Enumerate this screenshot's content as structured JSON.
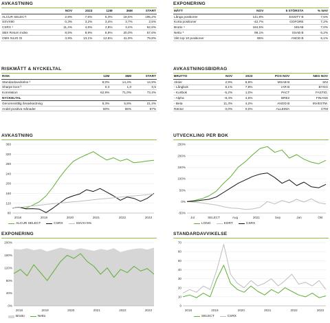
{
  "colors": {
    "green": "#5fae32",
    "black": "#111111",
    "gray": "#bdbdbd",
    "light_gray": "#d6d6d6",
    "accent_line": "#8ac13f"
  },
  "avkastning_table": {
    "title": "AVKASTNING",
    "headers": [
      "",
      "NOV",
      "2023",
      "12M",
      "36M",
      "START"
    ],
    "rows": [
      [
        "ALCUR SELECT",
        "2,8%",
        "7,6%",
        "5,3%",
        "18,5%",
        "195,2%"
      ],
      [
        "SSVX90",
        "0,3%",
        "3,2%",
        "3,4%",
        "3,7%",
        "2,5%"
      ],
      [
        "CSRX ¹",
        "11,4%",
        "4,6%",
        "2,8%",
        "3,4%",
        "62,6%"
      ],
      [
        "SBX Return Index",
        "8,5%",
        "9,9%",
        "6,9%",
        "20,0%",
        "57,6%"
      ],
      [
        "OMX N120 GI",
        "3,9%",
        "13,1%",
        "12,6%",
        "41,9%",
        "79,8%"
      ]
    ]
  },
  "exponering_table": {
    "title": "EXPONERING",
    "headers": [
      "MÅTT",
      "NOV",
      "5 STÖRSTA",
      "% NAV"
    ],
    "rows": [
      [
        "Långa positioner",
        "141,8%",
        "ESSITY B",
        "7,5%"
      ],
      [
        "Korta positioner",
        "-42,7%",
        "GOFORE",
        "7,2%"
      ],
      [
        "Brutto ⁴",
        "184,5%",
        "MSAB",
        "7,0%"
      ],
      [
        "Netto ⁵",
        "99,1%",
        "SSAB B",
        "6,2%"
      ],
      [
        "Vikt top 10 positioner",
        "85%",
        "ANOD B",
        "6,1%"
      ]
    ]
  },
  "risk_table": {
    "title": "RISKMÅTT & NYCKELTAL",
    "headers": [
      "RISK",
      "12M",
      "36M",
      "START"
    ],
    "rows": [
      [
        "Standardavvikelse ²",
        "8,0%",
        "14,4%",
        "14,9%"
      ],
      [
        "Sharpe kvot ³",
        "0,3",
        "1,0",
        "0,5"
      ],
      [
        "Korrelation",
        "62,9%",
        "71,0%",
        "73,4%"
      ]
    ],
    "sub_header": "NYCKELTAL",
    "rows2": [
      [
        "Genomsnittlig årsavkastning",
        "5,3%",
        "5,8%",
        "21,4%"
      ],
      [
        "Andel positiva månader",
        "50%",
        "55%",
        "67%"
      ]
    ]
  },
  "bidrag_table": {
    "title": "AVKASTNINGSBIDRAG",
    "headers": [
      "BRUTTO",
      "NOV",
      "2023",
      "POS NOV",
      "NEG NOV"
    ],
    "rows": [
      [
        "Aktier",
        "2,9%",
        "8,8%",
        "MSAB B",
        "SNI"
      ],
      [
        "- Långbok",
        "8,1%",
        "7,8%",
        "IAR B",
        "BYGG"
      ],
      [
        "- Kortbok",
        "-5,2%",
        "1,0%",
        "PACT",
        "FASTIG."
      ],
      [
        "- Alpha",
        "-8,4%",
        "4,5%",
        "BRE2",
        "FINANS"
      ],
      [
        "- Beta",
        "11,3%",
        "4,2%",
        "ANOD B",
        "INVESTM."
      ],
      [
        "Räntor",
        "0,0%",
        "0,0%",
        "ALLEIMA",
        "CTM"
      ]
    ]
  },
  "chart_data": [
    {
      "type": "line",
      "title": "AVKASTNING",
      "x_ticks": [
        "2018",
        "2019",
        "2020",
        "2021",
        "2022",
        "2023"
      ],
      "y_ticks": [
        "360",
        "320",
        "280",
        "240",
        "200",
        "160",
        "120",
        "80"
      ],
      "ylim": [
        80,
        360
      ],
      "series": [
        {
          "name": "ALCUR SELECT",
          "color": "#5fae32",
          "values": [
            100,
            103,
            99,
            112,
            126,
            150,
            185,
            225,
            260,
            290,
            305,
            318,
            330,
            312,
            296,
            305,
            292,
            300,
            285,
            288,
            292,
            295
          ]
        },
        {
          "name": "CSRX",
          "color": "#111111",
          "values": [
            100,
            104,
            97,
            98,
            96,
            82,
            100,
            120,
            140,
            150,
            158,
            175,
            168,
            180,
            165,
            150,
            132,
            145,
            140,
            128,
            140,
            160
          ]
        },
        {
          "name": "SSVX+5%",
          "color": "#bdbdbd",
          "values": [
            100,
            103,
            106,
            109,
            112,
            115,
            118,
            121,
            123,
            126,
            128,
            131,
            134,
            137,
            139,
            142,
            145,
            148,
            150,
            152,
            155,
            157
          ]
        }
      ]
    },
    {
      "type": "line",
      "title": "UTVECKLING PER BOK",
      "x_ticks": [
        "Jul",
        "SELECT",
        "Aug",
        "2021",
        "Sep",
        "Jan",
        "Okt"
      ],
      "y_ticks": [
        "250%",
        "200%",
        "150%",
        "100%",
        "50%",
        "0%",
        "-50%"
      ],
      "ylim": [
        -50,
        250
      ],
      "series": [
        {
          "name": "LONG",
          "color": "#5fae32",
          "values": [
            0,
            5,
            12,
            25,
            45,
            80,
            110,
            150,
            175,
            205,
            232,
            240,
            215,
            225,
            190,
            205,
            185,
            172,
            165,
            180
          ]
        },
        {
          "name": "KORT",
          "color": "#bdbdbd",
          "values": [
            0,
            -3,
            -6,
            -10,
            -15,
            -22,
            -28,
            -30,
            -34,
            -32,
            -25,
            0,
            -10,
            5,
            -5,
            10,
            -2,
            12,
            -5,
            -10
          ]
        },
        {
          "name": "CSRX",
          "color": "#111111",
          "values": [
            0,
            2,
            6,
            10,
            20,
            40,
            60,
            80,
            95,
            110,
            120,
            125,
            105,
            80,
            95,
            70,
            85,
            65,
            60,
            75
          ]
        }
      ]
    },
    {
      "type": "area",
      "title": "EXPONERING",
      "x_ticks": [
        "2018",
        "2019",
        "2020",
        "2021",
        "2022",
        "2023"
      ],
      "y_ticks": [
        "200%",
        "160%",
        "120%",
        "80%",
        "40%",
        "0%"
      ],
      "ylim": [
        0,
        200
      ],
      "series": [
        {
          "name": "Brutto",
          "color": "#d6d6d6",
          "values": [
            180,
            178,
            182,
            176,
            180,
            172,
            178,
            184,
            180,
            176,
            182,
            178,
            174,
            180,
            176,
            182,
            170,
            176,
            180,
            182,
            178,
            184
          ]
        },
        {
          "name": "Netto",
          "color": "#5fae32",
          "values": [
            102,
            115,
            95,
            130,
            105,
            80,
            110,
            140,
            160,
            150,
            165,
            140,
            125,
            100,
            120,
            90,
            115,
            105,
            125,
            110,
            118,
            100
          ]
        }
      ]
    },
    {
      "type": "line",
      "title": "STANDARDAVVIKELSE",
      "x_ticks": [
        "2018",
        "2019",
        "2020",
        "2021",
        "2022",
        "2023"
      ],
      "y_ticks": [
        "70",
        "60",
        "50",
        "40",
        "30",
        "20",
        "10",
        "0"
      ],
      "ylim": [
        0,
        70
      ],
      "series": [
        {
          "name": "SELECT",
          "color": "#5fae32",
          "values": [
            10,
            12,
            9,
            14,
            10,
            30,
            45,
            25,
            18,
            15,
            22,
            16,
            12,
            18,
            14,
            20,
            16,
            12,
            10,
            14,
            9,
            11
          ]
        },
        {
          "name": "CSRX",
          "color": "#bdbdbd",
          "values": [
            14,
            18,
            15,
            22,
            18,
            40,
            68,
            35,
            25,
            20,
            28,
            22,
            25,
            30,
            22,
            28,
            35,
            24,
            26,
            22,
            28,
            18
          ]
        }
      ]
    }
  ]
}
